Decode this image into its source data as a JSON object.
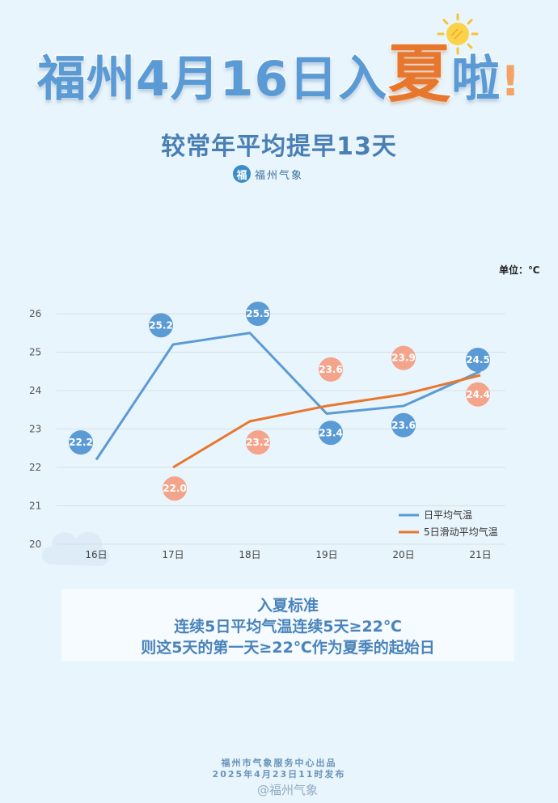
{
  "header": {
    "title_part1": "福州4月16日入",
    "title_big": "夏",
    "title_part2": "啦",
    "title_excl": "!",
    "subtitle": "较常年平均提早13天"
  },
  "brand": {
    "logo_char": "福",
    "name": "福州气象"
  },
  "unit_label": "单位：℃",
  "criteria": {
    "title": "入夏标准",
    "line1": "连续5日平均气温连续5天≥22℃",
    "line2": "则这5天的第一天≥22℃作为夏季的起始日"
  },
  "footer": {
    "line1": "福州市气象服务中心出品",
    "line2": "2025年4月23日11时发布",
    "watermark": "@福州气象"
  },
  "colors": {
    "daily": "#5b9bd5",
    "moving": "#e8772e",
    "moving_bubble": "#f3a48a",
    "accent": "#e8772e"
  },
  "chart_data": {
    "type": "line",
    "categories": [
      "16日",
      "17日",
      "18日",
      "19日",
      "20日",
      "21日"
    ],
    "ylim": [
      20,
      26
    ],
    "yticks": [
      20,
      21,
      22,
      23,
      24,
      25,
      26
    ],
    "legend_position": "bottom-right",
    "grid": true,
    "series": [
      {
        "name": "日平均气温",
        "values": [
          22.2,
          25.2,
          25.5,
          23.4,
          23.6,
          24.5
        ]
      },
      {
        "name": "5日滑动平均气温",
        "values": [
          null,
          22.0,
          23.2,
          23.6,
          23.9,
          24.4
        ]
      }
    ],
    "data_labels": [
      [
        "22.2",
        "25.2",
        "25.5",
        "23.4",
        "23.6",
        "24.5"
      ],
      [
        "",
        "22.0",
        "23.2",
        "23.6",
        "23.9",
        "24.4"
      ]
    ]
  }
}
